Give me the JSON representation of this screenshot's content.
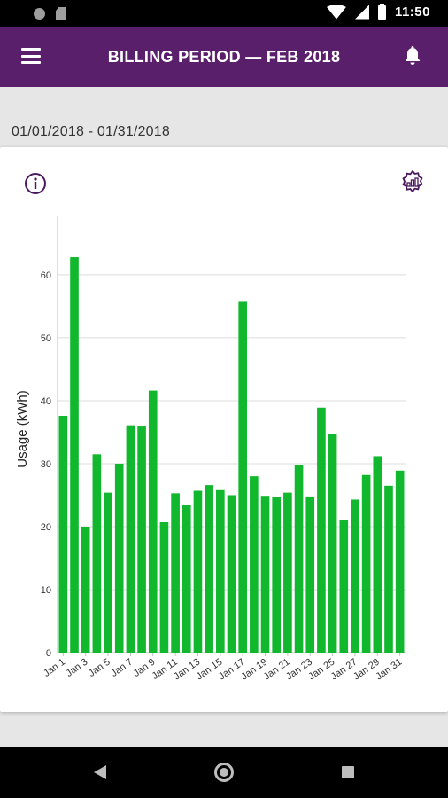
{
  "status_bar": {
    "time": "11:50"
  },
  "app_bar": {
    "title": "BILLING PERIOD  —  FEB 2018"
  },
  "date_range": "01/01/2018 - 01/31/2018",
  "colors": {
    "app_bar": "#5a1f6b",
    "bar": "#11b82d"
  },
  "icons": [
    "menu-icon",
    "bell-icon",
    "info-icon",
    "gear-icon",
    "back-icon",
    "home-icon",
    "recent-apps-icon"
  ],
  "chart_data": {
    "type": "bar",
    "ylabel": "Usage (kWh)",
    "ylim": [
      0,
      69
    ],
    "yticks": [
      0,
      10,
      20,
      30,
      40,
      50,
      60
    ],
    "grid": true,
    "categories": [
      "Jan 1",
      "Jan 2",
      "Jan 3",
      "Jan 4",
      "Jan 5",
      "Jan 6",
      "Jan 7",
      "Jan 8",
      "Jan 9",
      "Jan 10",
      "Jan 11",
      "Jan 12",
      "Jan 13",
      "Jan 14",
      "Jan 15",
      "Jan 16",
      "Jan 17",
      "Jan 18",
      "Jan 19",
      "Jan 20",
      "Jan 21",
      "Jan 22",
      "Jan 23",
      "Jan 24",
      "Jan 25",
      "Jan 26",
      "Jan 27",
      "Jan 28",
      "Jan 29",
      "Jan 30",
      "Jan 31"
    ],
    "tick_labels": [
      "Jan 1",
      "Jan 3",
      "Jan 5",
      "Jan 7",
      "Jan 9",
      "Jan 11",
      "Jan 13",
      "Jan 15",
      "Jan 17",
      "Jan 19",
      "Jan 21",
      "Jan 23",
      "Jan 25",
      "Jan 27",
      "Jan 29",
      "Jan 31"
    ],
    "values": [
      37.6,
      62.8,
      20.0,
      31.5,
      25.4,
      30.0,
      36.1,
      35.9,
      41.6,
      20.7,
      25.3,
      23.4,
      25.7,
      26.6,
      25.8,
      25.0,
      55.7,
      28.0,
      24.9,
      24.7,
      25.4,
      29.8,
      24.8,
      38.9,
      34.7,
      21.1,
      24.3,
      28.2,
      31.2,
      26.5,
      28.9
    ]
  }
}
